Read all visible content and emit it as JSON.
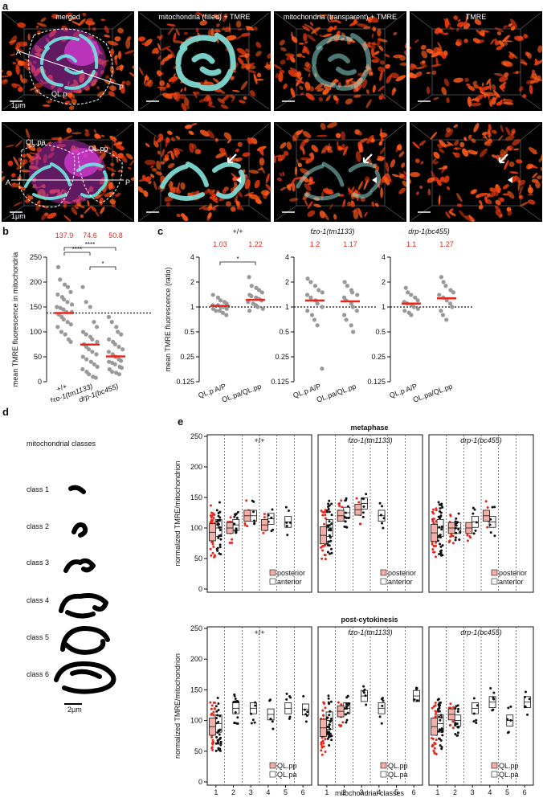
{
  "panels": {
    "a": "a",
    "b": "b",
    "c": "c",
    "d": "d",
    "e": "e"
  },
  "panel_a": {
    "titles": [
      "merged",
      "mitochondria (filled) + TMRE",
      "mitochondria (transparent) + TMRE",
      "TMRE"
    ],
    "labels_top": {
      "cell": "QL.p",
      "a": "A",
      "p": "P",
      "scale": "1μm"
    },
    "labels_bottom": {
      "cell1": "QL.pa",
      "cell2": "QL.pp",
      "a": "A",
      "p": "P",
      "scale": "1μm"
    }
  },
  "panel_d": {
    "title": "mitochondrial classes",
    "classes": [
      "class 1",
      "class 2",
      "class 3",
      "class 4",
      "class 5",
      "class 6"
    ],
    "scale": "2μm"
  },
  "chart_data": [
    {
      "panel": "b",
      "type": "scatter",
      "ylabel": "mean TMRE fluorescence in mitochondria",
      "categories": [
        "+/+",
        "fzo-1(tm1133)",
        "drp-1(bc455)"
      ],
      "means": [
        137.9,
        74.6,
        50.8
      ],
      "ylim": [
        0,
        250
      ],
      "yticks": [
        0,
        50,
        100,
        150,
        200,
        250
      ],
      "reference_line": 137.9,
      "significance": [
        "****",
        "****",
        "*"
      ],
      "series": [
        {
          "values": [
            230,
            205,
            195,
            190,
            180,
            175,
            170,
            165,
            160,
            155,
            150,
            148,
            145,
            140,
            140,
            135,
            130,
            125,
            120,
            115,
            110,
            100,
            95,
            85,
            80
          ]
        },
        {
          "values": [
            190,
            160,
            150,
            120,
            110,
            100,
            95,
            90,
            85,
            80,
            75,
            70,
            65,
            60,
            55,
            50,
            45,
            40,
            35,
            30,
            25,
            20,
            15,
            10,
            8
          ]
        },
        {
          "values": [
            130,
            120,
            110,
            100,
            95,
            85,
            80,
            75,
            70,
            65,
            60,
            55,
            50,
            45,
            42,
            40,
            38,
            35,
            30,
            28,
            25,
            20,
            18,
            15
          ]
        }
      ]
    },
    {
      "panel": "c",
      "type": "scatter",
      "scale": "log2",
      "ylabel": "mean TMRE fluorescence (ratio)",
      "yticks": [
        0.125,
        0.25,
        0.5,
        1,
        2,
        4
      ],
      "groups": [
        {
          "title": "+/+",
          "categories": [
            "QL.p A/P",
            "QL.pa/QL.pp"
          ],
          "means": [
            1.03,
            1.22
          ],
          "significance": "*",
          "series": [
            {
              "values": [
                1.4,
                1.3,
                1.2,
                1.15,
                1.1,
                1.05,
                1.05,
                1.0,
                1.0,
                0.95,
                0.95,
                0.9,
                0.9,
                0.85,
                0.8
              ]
            },
            {
              "values": [
                2.3,
                1.8,
                1.7,
                1.6,
                1.5,
                1.4,
                1.35,
                1.3,
                1.25,
                1.2,
                1.15,
                1.1,
                1.05,
                1.0,
                0.95,
                0.9
              ]
            }
          ]
        },
        {
          "title": "fzo-1(tm1133)",
          "categories": [
            "QL.p A/P",
            "QL.pa/QL.pp"
          ],
          "means": [
            1.2,
            1.17
          ],
          "series": [
            {
              "values": [
                2.2,
                2.0,
                1.8,
                1.6,
                1.5,
                1.4,
                1.3,
                1.2,
                1.1,
                1.0,
                0.9,
                0.8,
                0.7,
                0.6,
                0.18
              ]
            },
            {
              "values": [
                2.0,
                1.8,
                1.6,
                1.5,
                1.4,
                1.3,
                1.2,
                1.1,
                1.0,
                0.9,
                0.8,
                0.7,
                0.6,
                0.5
              ]
            }
          ]
        },
        {
          "title": "drp-1(bc455)",
          "categories": [
            "QL.p A/P",
            "QL.pa/QL.pp"
          ],
          "means": [
            1.1,
            1.27
          ],
          "series": [
            {
              "values": [
                1.7,
                1.5,
                1.4,
                1.3,
                1.2,
                1.15,
                1.1,
                1.05,
                1.0,
                0.95,
                0.9,
                0.85,
                0.8
              ]
            },
            {
              "values": [
                2.3,
                2.0,
                1.8,
                1.6,
                1.5,
                1.4,
                1.3,
                1.2,
                1.1,
                1.0,
                0.9,
                0.8,
                0.7
              ]
            }
          ]
        }
      ]
    },
    {
      "panel": "e",
      "type": "box",
      "ylabel": "normalized TMRE/mitochondrion",
      "xlabel": "mitochondrial classes",
      "categories": [
        "1",
        "2",
        "3",
        "4",
        "5",
        "6"
      ],
      "ylim": [
        0,
        250
      ],
      "yticks": [
        0,
        50,
        100,
        150,
        200,
        250
      ],
      "rows": [
        {
          "title": "metaphase",
          "legend": [
            "posterior",
            "anterior"
          ],
          "groups": [
            {
              "title": "+/+",
              "medians": [
                [
                  100,
                  93
                ],
                [
                  105,
                  100
                ],
                [
                  120,
                  120
                ],
                [
                  115,
                  105
                ],
                [
                  110,
                  null
                ],
                [
                  null,
                  null
                ]
              ]
            },
            {
              "title": "fzo-1(tm1133)",
              "medians": [
                [
                  100,
                  88
                ],
                [
                  125,
                  120
                ],
                [
                  140,
                  130
                ],
                [
                  120,
                  null
                ],
                [
                  null,
                  null
                ],
                [
                  null,
                  null
                ]
              ]
            },
            {
              "title": "drp-1(bc455)",
              "medians": [
                [
                  100,
                  92
                ],
                [
                  100,
                  100
                ],
                [
                  110,
                  100
                ],
                [
                  110,
                  120
                ],
                [
                  null,
                  null
                ],
                [
                  null,
                  null
                ]
              ]
            }
          ]
        },
        {
          "title": "post-cytokinesis",
          "legend": [
            "QL.pp",
            "QL.pa"
          ],
          "groups": [
            {
              "title": "+/+",
              "medians": [
                [
                  95,
                  90
                ],
                [
                  120,
                  null
                ],
                [
                  120,
                  null
                ],
                [
                  110,
                  null
                ],
                [
                  120,
                  null
                ],
                [
                  118,
                  null
                ]
              ]
            },
            {
              "title": "fzo-1(tm1133)",
              "medians": [
                [
                  100,
                  88
                ],
                [
                  120,
                  115
                ],
                [
                  140,
                  null
                ],
                [
                  120,
                  null
                ],
                [
                  null,
                  null
                ],
                [
                  140,
                  null
                ]
              ]
            },
            {
              "title": "drp-1(bc455)",
              "medians": [
                [
                  95,
                  90
                ],
                [
                  100,
                  110
                ],
                [
                  120,
                  null
                ],
                [
                  130,
                  null
                ],
                [
                  100,
                  null
                ],
                [
                  130,
                  null
                ]
              ]
            }
          ]
        }
      ]
    }
  ]
}
